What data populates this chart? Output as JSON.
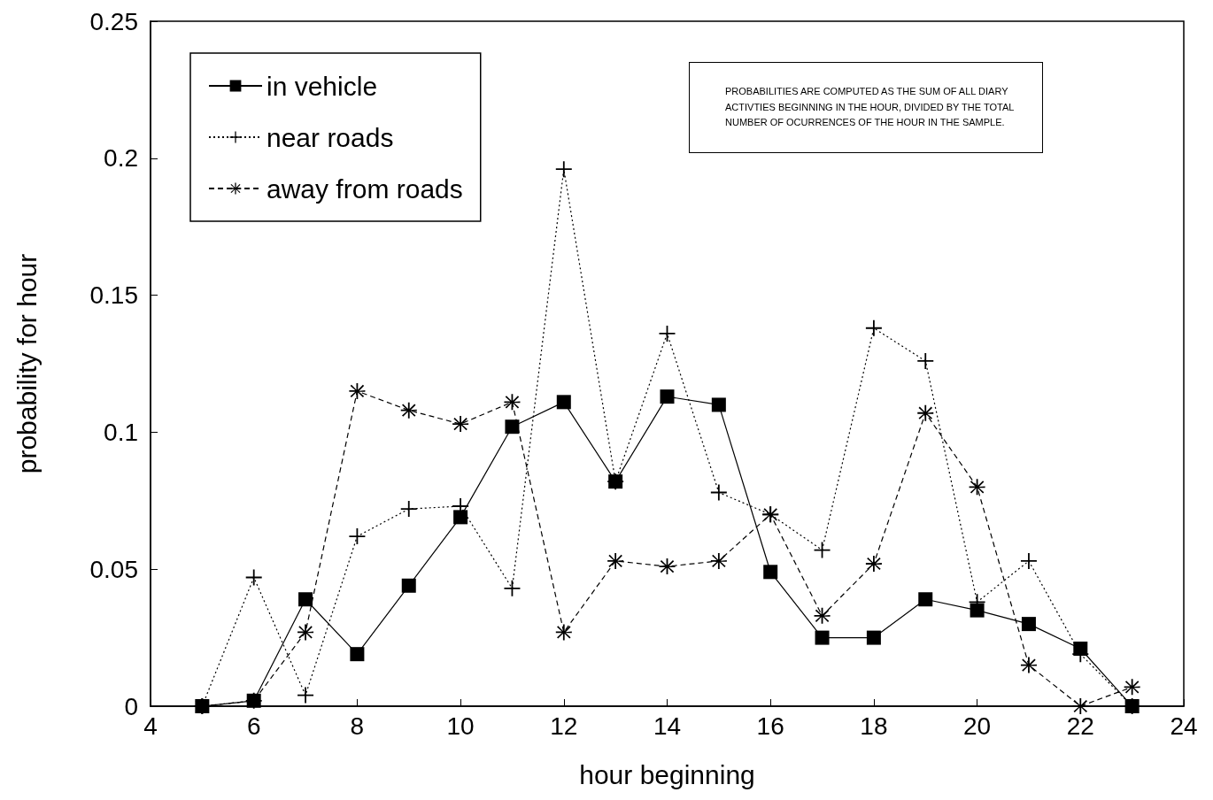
{
  "chart_data": {
    "type": "line",
    "xlabel": "hour beginning",
    "ylabel": "probability for hour",
    "x": [
      5,
      6,
      7,
      8,
      9,
      10,
      11,
      12,
      13,
      14,
      15,
      16,
      17,
      18,
      19,
      20,
      21,
      22,
      23
    ],
    "series": [
      {
        "name": "in vehicle",
        "color": "#000000",
        "marker": "square",
        "line_style": "solid",
        "values": [
          0,
          0.002,
          0.039,
          0.019,
          0.044,
          0.069,
          0.102,
          0.111,
          0.082,
          0.113,
          0.11,
          0.049,
          0.025,
          0.025,
          0.039,
          0.035,
          0.03,
          0.021,
          0
        ]
      },
      {
        "name": "near roads",
        "color": "#000000",
        "marker": "cross",
        "line_style": "dotted",
        "values": [
          0,
          0.047,
          0.004,
          0.062,
          0.072,
          0.073,
          0.043,
          0.196,
          0.082,
          0.136,
          0.078,
          0.07,
          0.057,
          0.138,
          0.126,
          0.038,
          0.053,
          0.019,
          0
        ]
      },
      {
        "name": "away from roads",
        "color": "#000000",
        "marker": "star",
        "line_style": "dashed",
        "values": [
          0,
          0.002,
          0.027,
          0.115,
          0.108,
          0.103,
          0.111,
          0.027,
          0.053,
          0.051,
          0.053,
          0.07,
          0.033,
          0.052,
          0.107,
          0.08,
          0.015,
          0,
          0.007
        ]
      }
    ],
    "xlim": [
      4,
      24
    ],
    "xticks": [
      4,
      6,
      8,
      10,
      12,
      14,
      16,
      18,
      20,
      22,
      24
    ],
    "ylim": [
      0,
      0.25
    ],
    "yticks": [
      0,
      0.05,
      0.1,
      0.15,
      0.2,
      0.25
    ],
    "grid": false,
    "legend": "top left",
    "annotations": [
      "PROBABILITIES ARE COMPUTED AS THE SUM OF ALL DIARY ACTIVTIES BEGINNING IN THE HOUR, DIVIDED BY THE TOTAL NUMBER OF OCURRENCES OF THE HOUR IN THE SAMPLE."
    ]
  }
}
